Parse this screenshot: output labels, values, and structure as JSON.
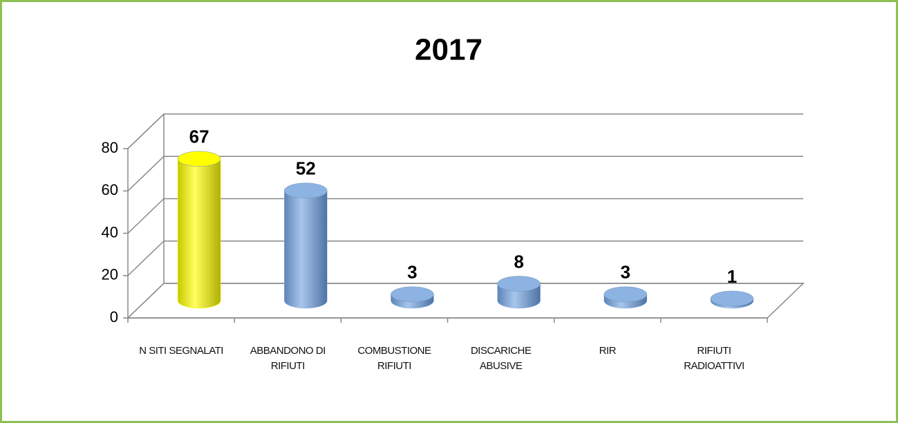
{
  "chart_data": {
    "type": "bar3d",
    "title": "2017",
    "categories": [
      "N SITI SEGNALATI",
      "ABBANDONO DI RIFIUTI",
      "COMBUSTIONE RIFIUTI",
      "DISCARICHE ABUSIVE",
      "RIR",
      "RIFIUTI RADIOATTIVI"
    ],
    "values": [
      67,
      52,
      3,
      8,
      3,
      1
    ],
    "colors": [
      "#ffff00",
      "#8db3e2",
      "#8db3e2",
      "#8db3e2",
      "#8db3e2",
      "#8db3e2"
    ],
    "ylim": [
      0,
      80
    ],
    "yticks": [
      0,
      20,
      40,
      60,
      80
    ],
    "grid": true
  }
}
